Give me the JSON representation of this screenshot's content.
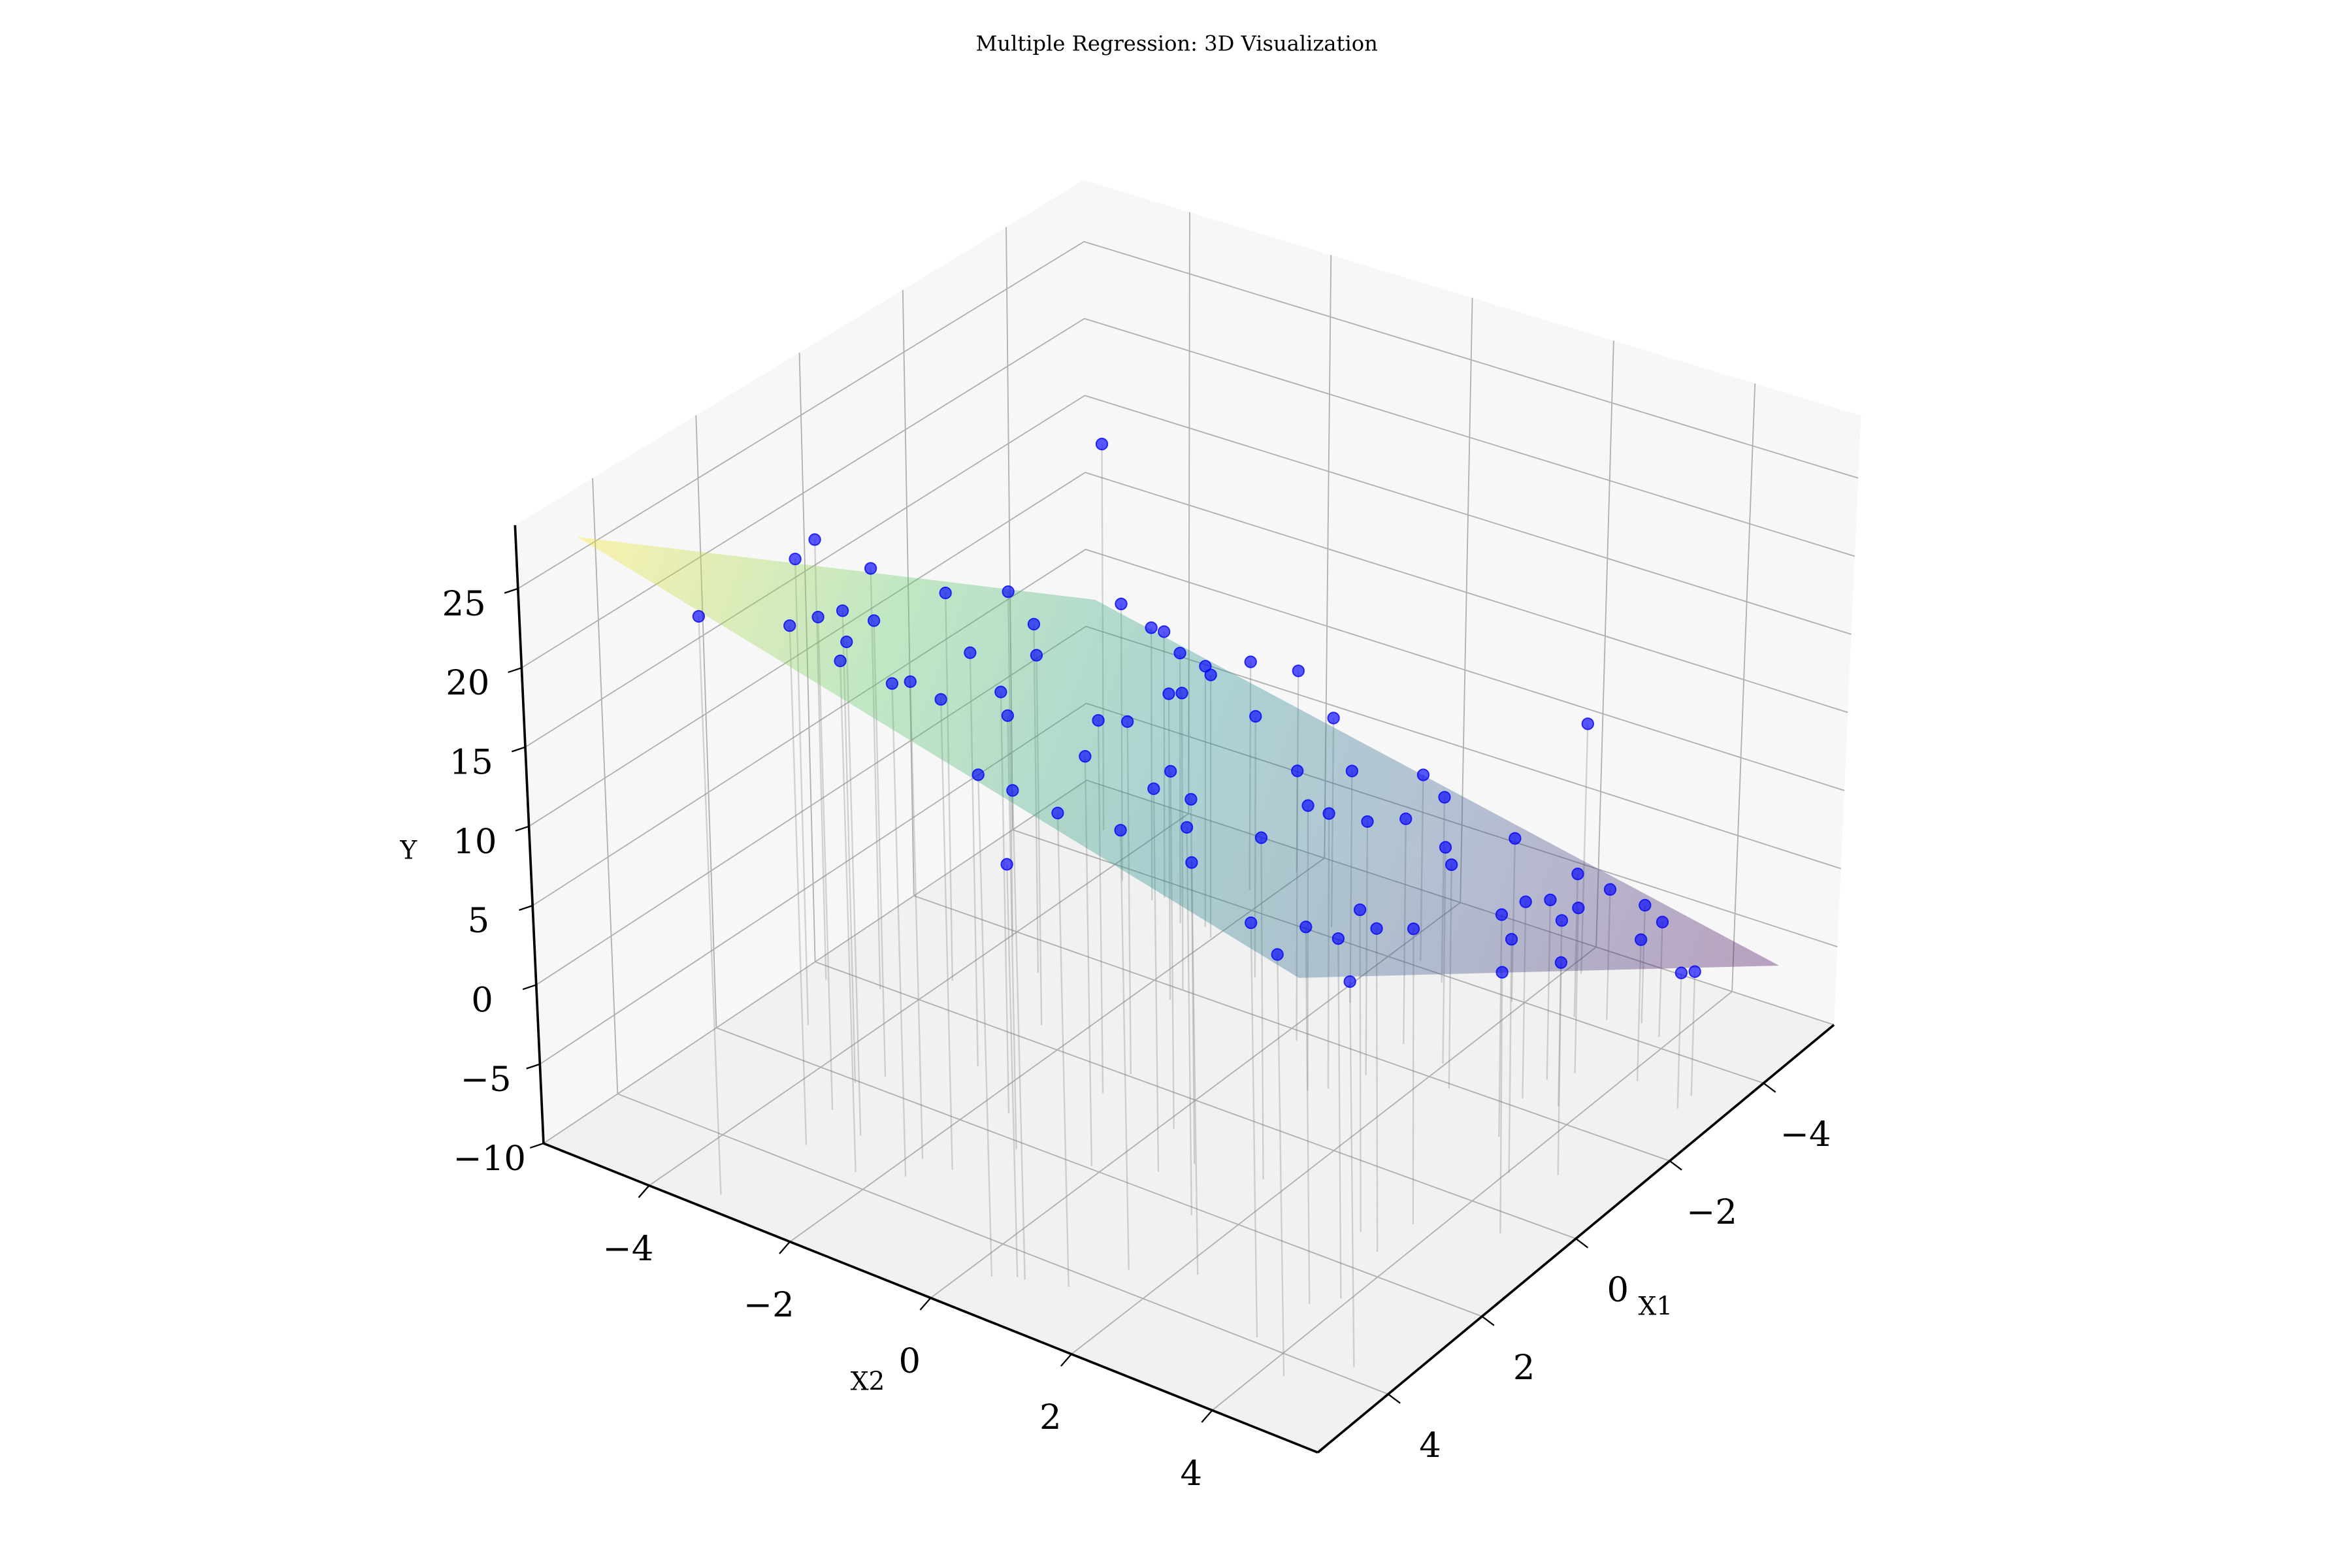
{
  "chart_data": {
    "type": "scatter3d",
    "title": "Multiple Regression: 3D Visualization",
    "x1_label": "X1",
    "x2_label": "X2",
    "y_label": "Y",
    "x1lim": [
      -5.5,
      5.5
    ],
    "x2lim": [
      -5.5,
      5.5
    ],
    "ylim": [
      -10,
      29
    ],
    "x1ticks": [
      {
        "value": -4,
        "label": "−4"
      },
      {
        "value": -2,
        "label": "−2"
      },
      0,
      2,
      4
    ],
    "x2ticks": [
      {
        "value": -4,
        "label": "−4"
      },
      {
        "value": -2,
        "label": "−2"
      },
      0,
      2,
      4
    ],
    "yticks": [
      {
        "value": -10,
        "label": "−10"
      },
      {
        "value": -5,
        "label": "−5"
      },
      0,
      5,
      10,
      15,
      20,
      25
    ],
    "grid": true,
    "color": "#0000ff",
    "x1": [
      5.14,
      0.27,
      1.28,
      0.07,
      -0.6,
      -1.87,
      -3.73,
      -3.54,
      3.58,
      2.05,
      1.72,
      3.73,
      3.45,
      2.99,
      0.86,
      1.54,
      -0.36,
      -1.35,
      2.16,
      1.94,
      0.5,
      -0.05,
      -1.73,
      -3.37,
      -4.38,
      -5.04,
      -4.2,
      -2.73,
      -1.8,
      -2.87,
      -4.12,
      -3.85,
      -2.44,
      -1.61,
      -1.11,
      -0.94,
      -3.93,
      -1.91,
      -2.33,
      -4.04,
      -4.19,
      -4.35,
      -4.2,
      -3.32,
      -3.0,
      -3.25,
      -3.0,
      -2.7,
      -2.29,
      -2.2,
      -1.34,
      -0.75,
      -1.03,
      0.4,
      0.81,
      1.55,
      1.3,
      2.63,
      2.94,
      3.9,
      4.4,
      3.76,
      1.0,
      3.19,
      2.15,
      3.58,
      4.31,
      4.49,
      4.67,
      4.5,
      1.58,
      0.68,
      1.19,
      -2.02,
      -3.67,
      -3.28,
      -3.2,
      3.0,
      3.01,
      2.73,
      -4.6,
      -4.9
    ],
    "x2": [
      -3.23,
      -5.15,
      -4.69,
      -4.51,
      -3.94,
      -3.97,
      -3.7,
      -3.13,
      -3.1,
      -3.47,
      -3.27,
      -2.29,
      -1.77,
      -1.42,
      -2.54,
      -1.62,
      -2.48,
      -3.23,
      -1.08,
      -0.15,
      -0.99,
      -0.97,
      -1.58,
      -2.23,
      -2.3,
      -2.08,
      -0.97,
      -1.05,
      0.21,
      0.24,
      0.39,
      0.89,
      1.32,
      1.35,
      1.15,
      0.97,
      1.86,
      2.35,
      1.97,
      2.7,
      3.07,
      3.47,
      3.83,
      4.91,
      4.93,
      4.17,
      3.43,
      3.23,
      3.68,
      3.22,
      3.47,
      4.02,
      4.54,
      4.68,
      3.7,
      3.69,
      3.28,
      3.9,
      3.66,
      3.56,
      4.28,
      4.85,
      1.67,
      2.23,
      1.43,
      1.51,
      1.15,
      0.65,
      0.3,
      0.55,
      0.56,
      0.16,
      0.81,
      -1.6,
      -3.04,
      -2.53,
      -2.03,
      -1.84,
      -2.72,
      -3.32,
      -4.6,
      2.2
    ],
    "values": [
      25.9,
      18.1,
      19.6,
      16.8,
      14.7,
      12.1,
      7.8,
      7.5,
      22.4,
      19.7,
      18.7,
      21.7,
      20.5,
      19.1,
      16.0,
      16.3,
      13.4,
      12.2,
      16.9,
      15.3,
      13.3,
      12.1,
      9.4,
      6.7,
      4.7,
      3.0,
      3.4,
      6.6,
      7.0,
      4.7,
      1.9,
      1.8,
      4.2,
      5.9,
      7.2,
      7.8,
      0.4,
      4.0,
      3.6,
      -0.9,
      -1.7,
      -2.5,
      -2.7,
      -2.2,
      -1.5,
      -1.1,
      0.4,
      1.3,
      1.6,
      2.3,
      3.8,
      4.4,
      3.1,
      5.9,
      8.0,
      9.6,
      9.6,
      11.6,
      12.6,
      14.7,
      14.9,
      12.8,
      11.0,
      14.9,
      13.7,
      16.6,
      18.6,
      19.6,
      20.4,
      15.0,
      13.6,
      12.2,
      12.5,
      8.8,
      7.1,
      7.3,
      6.8,
      19.6,
      20.8,
      20.9,
      15.0,
      6.0
    ],
    "surface": {
      "x1": [
        -5,
        5
      ],
      "x2": [
        -5,
        5
      ],
      "y": [
        [
          3.5,
          -5.7
        ],
        [
          28,
          15.8
        ]
      ],
      "colormap": [
        "#fde725",
        "#5ec962",
        "#21918c",
        "#3b528b",
        "#440154"
      ]
    }
  }
}
